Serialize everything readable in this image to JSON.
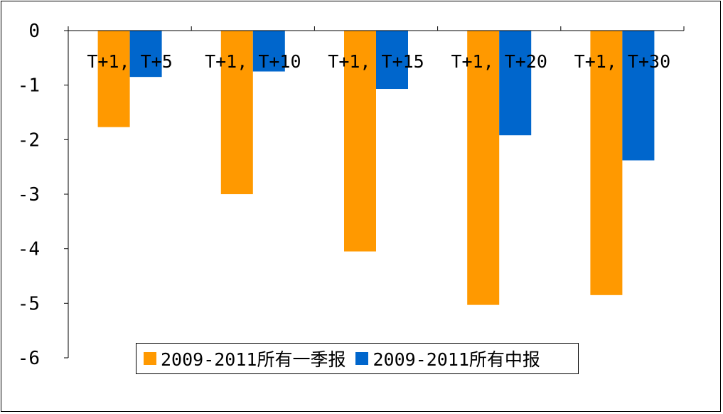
{
  "chart_data": {
    "type": "bar",
    "categories": [
      "T+1, T+5",
      "T+1, T+10",
      "T+1, T+15",
      "T+1, T+20",
      "T+1, T+30"
    ],
    "series": [
      {
        "name": "2009-2011所有一季报",
        "color": "#FF9900",
        "values": [
          -1.77,
          -3.0,
          -4.05,
          -5.03,
          -4.85
        ]
      },
      {
        "name": "2009-2011所有中报",
        "color": "#0066CC",
        "values": [
          -0.85,
          -0.75,
          -1.07,
          -1.92,
          -2.38
        ]
      }
    ],
    "yticks": [
      "0",
      "-1",
      "-2",
      "-3",
      "-4",
      "-5",
      "-6"
    ],
    "ylim": [
      -6,
      0
    ],
    "title": "",
    "xlabel": "",
    "ylabel": "",
    "legend": "bottom-center"
  }
}
